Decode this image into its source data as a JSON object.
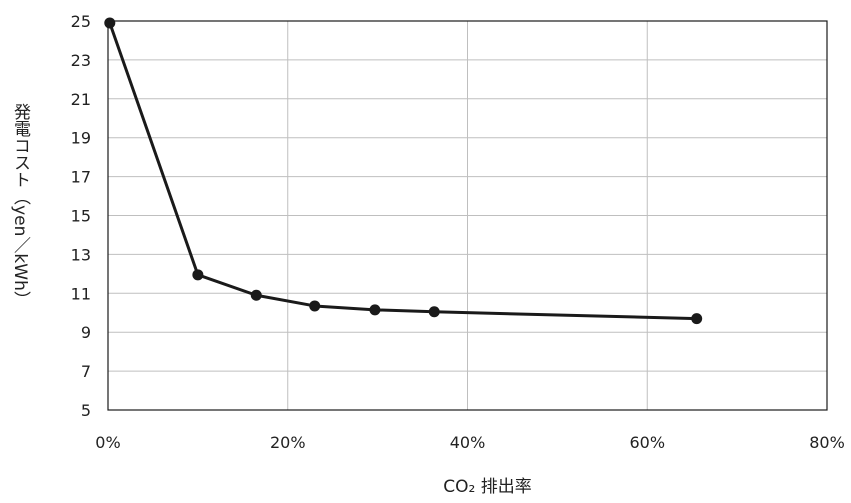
{
  "chart_data": {
    "type": "line",
    "title": "",
    "xlabel": "CO₂ 排出率",
    "ylabel": "発電コスト（yen／kWh）",
    "xlim": [
      0,
      80
    ],
    "ylim": [
      5,
      25
    ],
    "x_ticks": [
      "0%",
      "20%",
      "40%",
      "60%",
      "80%"
    ],
    "x_tick_values": [
      0,
      20,
      40,
      60,
      80
    ],
    "y_ticks": [
      "5",
      "7",
      "9",
      "11",
      "13",
      "15",
      "17",
      "19",
      "21",
      "23",
      "25"
    ],
    "y_tick_values": [
      5,
      7,
      9,
      11,
      13,
      15,
      17,
      19,
      21,
      23,
      25
    ],
    "grid": true,
    "series": [
      {
        "x": [
          0.2,
          10,
          16.5,
          23,
          29.7,
          36.3,
          65.5
        ],
        "y": [
          24.9,
          11.95,
          10.9,
          10.35,
          10.15,
          10.05,
          9.7
        ]
      }
    ],
    "colors": {
      "line": "#1a1a1a",
      "grid": "#bfbfbf",
      "frame": "#1a1a1a"
    }
  }
}
